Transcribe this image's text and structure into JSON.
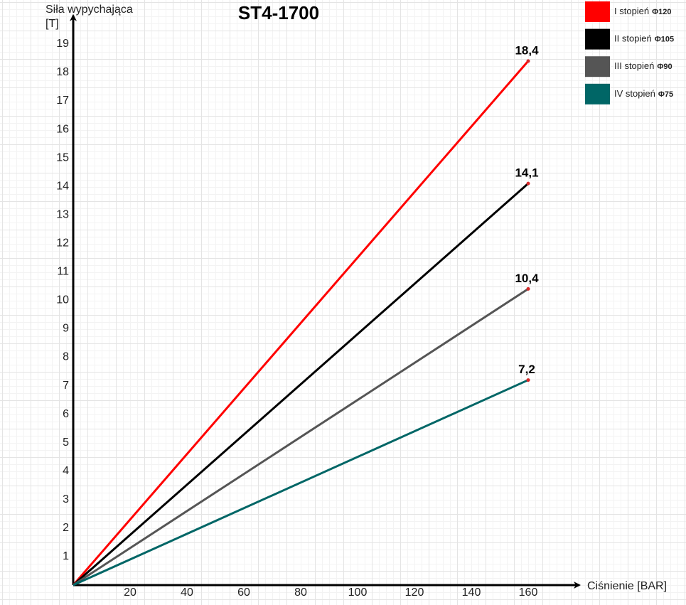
{
  "chart_data": {
    "type": "line",
    "title": "ST4-1700",
    "y_label": [
      "Siła wypychająca",
      "[T]"
    ],
    "x_label": "Ciśnienie [BAR]",
    "x": [
      0,
      160
    ],
    "series": [
      {
        "name": "I stopień",
        "bore": "Φ120",
        "color": "#ff0000",
        "values": [
          0,
          18.4
        ],
        "value_labels": [
          null,
          "18,4"
        ]
      },
      {
        "name": "II stopień",
        "bore": "Φ105",
        "color": "#000000",
        "values": [
          0,
          14.1
        ],
        "value_labels": [
          null,
          "14,1"
        ]
      },
      {
        "name": "III stopień",
        "bore": "Φ90",
        "color": "#555555",
        "values": [
          0,
          10.4
        ],
        "value_labels": [
          null,
          "10,4"
        ]
      },
      {
        "name": "IV stopień",
        "bore": "Φ75",
        "color": "#006666",
        "values": [
          0,
          7.2
        ],
        "value_labels": [
          null,
          "7,2"
        ]
      }
    ],
    "xlim": [
      0,
      178
    ],
    "xticks": [
      20,
      40,
      60,
      80,
      100,
      120,
      140,
      160
    ],
    "ylim": [
      0,
      20
    ],
    "yticks": [
      1,
      2,
      3,
      4,
      5,
      6,
      7,
      8,
      9,
      10,
      11,
      12,
      13,
      14,
      15,
      16,
      17,
      18,
      19
    ],
    "point_color": "#d62728"
  }
}
